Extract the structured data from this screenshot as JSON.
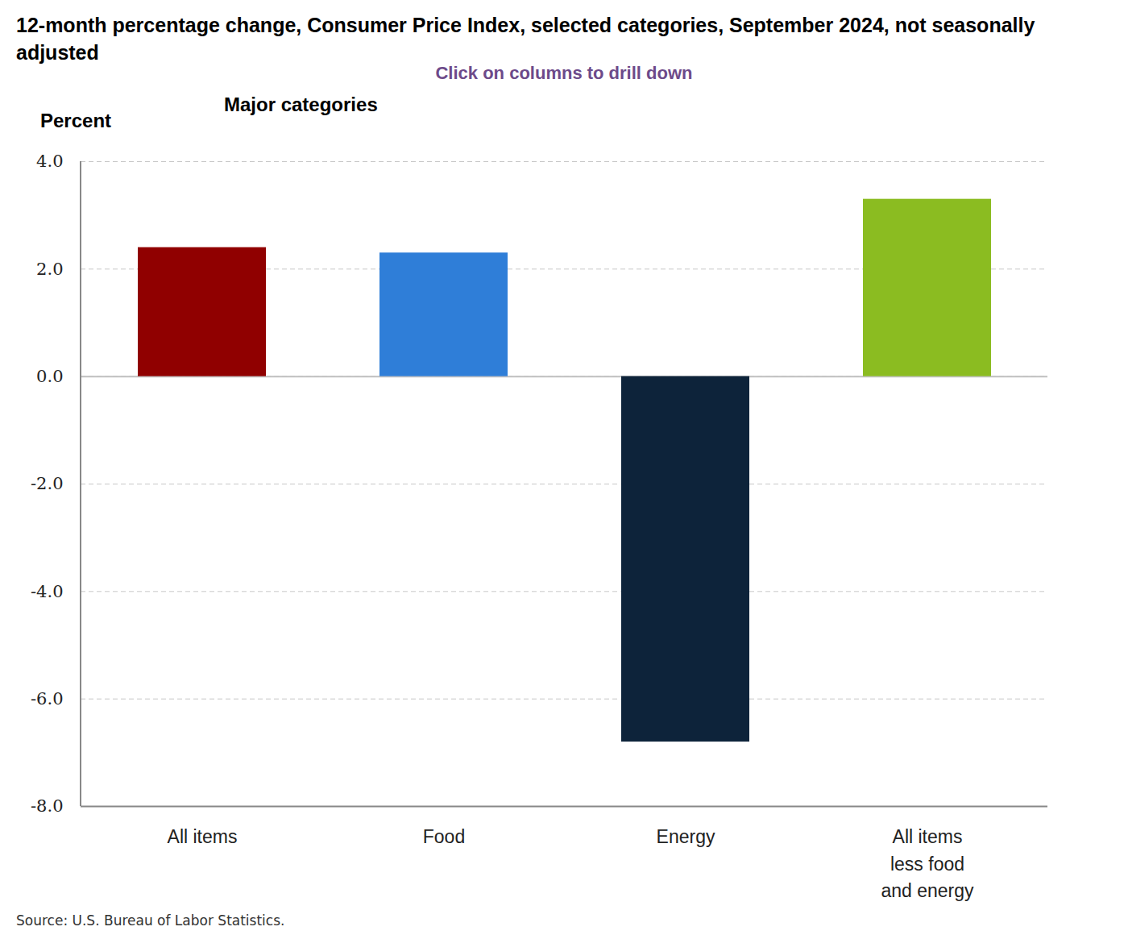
{
  "chart_data": {
    "type": "bar",
    "title": "12-month percentage change, Consumer Price Index, selected categories, September 2024, not seasonally adjusted",
    "subtitle": "Click on columns to drill down",
    "annotations": [
      "Major categories"
    ],
    "ylabel": "Percent",
    "caption": "Source: U.S. Bureau of Labor Statistics.",
    "categories": [
      "All items",
      "Food",
      "Energy",
      "All items\nless food\nand energy"
    ],
    "values": [
      2.4,
      2.3,
      -6.8,
      3.3
    ],
    "colors": [
      "#900000",
      "#2f7ed8",
      "#0d233a",
      "#8bbc21"
    ],
    "ylim": [
      -8,
      4
    ],
    "yticks": [
      {
        "value": -8,
        "label": "-8.0"
      },
      {
        "value": -6,
        "label": "-6.0"
      },
      {
        "value": -4,
        "label": "-4.0"
      },
      {
        "value": -2,
        "label": "-2.0"
      },
      {
        "value": 0,
        "label": "0.0"
      },
      {
        "value": 2,
        "label": "2.0"
      },
      {
        "value": 4,
        "label": "4.0"
      }
    ],
    "grid": true
  }
}
